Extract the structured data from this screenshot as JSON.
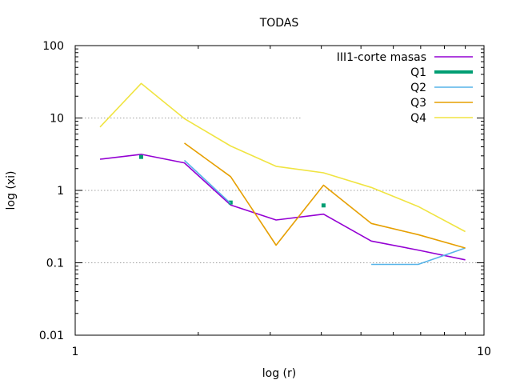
{
  "chart_data": {
    "type": "line",
    "title": "TODAS",
    "xlabel": "log (r)",
    "ylabel": "log (xi)",
    "xscale": "log",
    "yscale": "log",
    "xlim": [
      1,
      10
    ],
    "ylim": [
      0.01,
      100
    ],
    "x_ticks": [
      {
        "value": 1,
        "label": "1"
      },
      {
        "value": 10,
        "label": "10"
      }
    ],
    "y_ticks": [
      {
        "value": 0.01,
        "label": "0.01"
      },
      {
        "value": 0.1,
        "label": "0.1"
      },
      {
        "value": 1,
        "label": "1"
      },
      {
        "value": 10,
        "label": "10"
      },
      {
        "value": 100,
        "label": "100"
      }
    ],
    "grid": "dotted horizontal lines at y = 0.1, 1, 10",
    "legend_position": "top-right",
    "series": [
      {
        "name": "III1-corte masas",
        "color": "#9400d3",
        "points": [
          [
            1.15,
            2.7
          ],
          [
            1.45,
            3.15
          ],
          [
            1.85,
            2.4
          ],
          [
            2.4,
            0.63
          ],
          [
            3.1,
            0.39
          ],
          [
            4.05,
            0.47
          ],
          [
            5.3,
            0.2
          ],
          [
            6.9,
            0.15
          ],
          [
            9.0,
            0.11
          ]
        ]
      },
      {
        "name": "Q1",
        "color": "#009e73",
        "style": "points",
        "points": [
          [
            1.45,
            2.9
          ],
          [
            2.4,
            0.68
          ],
          [
            4.05,
            0.62
          ]
        ]
      },
      {
        "name": "Q2",
        "color": "#56b4e9",
        "segments": [
          [
            [
              1.85,
              2.6
            ],
            [
              2.4,
              0.66
            ]
          ],
          [
            [
              5.3,
              0.095
            ],
            [
              6.9,
              0.095
            ],
            [
              9.0,
              0.16
            ]
          ]
        ]
      },
      {
        "name": "Q3",
        "color": "#e69f00",
        "points": [
          [
            1.85,
            4.5
          ],
          [
            2.4,
            1.55
          ],
          [
            3.1,
            0.175
          ],
          [
            4.05,
            1.18
          ],
          [
            5.3,
            0.35
          ],
          [
            6.9,
            0.245
          ],
          [
            9.0,
            0.16
          ]
        ]
      },
      {
        "name": "Q4",
        "color": "#f0e442",
        "points": [
          [
            1.15,
            7.5
          ],
          [
            1.45,
            30
          ],
          [
            1.85,
            9.8
          ],
          [
            2.4,
            4.1
          ],
          [
            3.1,
            2.15
          ],
          [
            4.05,
            1.75
          ],
          [
            5.3,
            1.1
          ],
          [
            6.9,
            0.6
          ],
          [
            9.0,
            0.27
          ]
        ]
      }
    ]
  }
}
